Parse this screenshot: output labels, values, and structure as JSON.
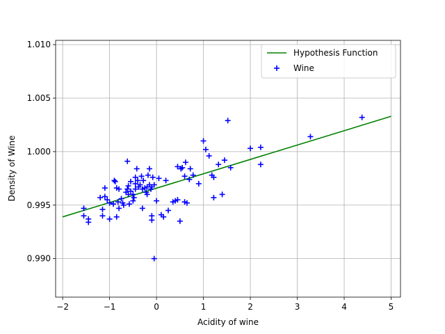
{
  "chart_data": {
    "type": "scatter",
    "xlabel": "Acidity of wine",
    "ylabel": "Density of Wine",
    "xlim": [
      -2.15,
      5.2
    ],
    "ylim": [
      0.9864,
      1.0104
    ],
    "xticks": [
      -2,
      -1,
      0,
      1,
      2,
      3,
      4,
      5
    ],
    "xtick_labels": [
      "−2",
      "−1",
      "0",
      "1",
      "2",
      "3",
      "4",
      "5"
    ],
    "yticks": [
      0.99,
      0.995,
      1.0,
      1.005,
      1.01
    ],
    "ytick_labels": [
      "0.990",
      "0.995",
      "1.000",
      "1.005",
      "1.010"
    ],
    "grid": true,
    "legend": {
      "position": "top-right"
    },
    "colors": {
      "line": "#008000",
      "points": "#0000ff"
    },
    "line": {
      "name": "Hypothesis Function",
      "x": [
        -2,
        5
      ],
      "y": [
        0.9939,
        1.0033
      ]
    },
    "scatter": {
      "name": "Wine",
      "marker": "+",
      "points": [
        [
          -1.55,
          0.9947
        ],
        [
          -1.55,
          0.994
        ],
        [
          -1.45,
          0.9937
        ],
        [
          -1.45,
          0.9934
        ],
        [
          -1.2,
          0.9957
        ],
        [
          -1.15,
          0.9946
        ],
        [
          -1.15,
          0.994
        ],
        [
          -1.1,
          0.9966
        ],
        [
          -1.1,
          0.9958
        ],
        [
          -1.05,
          0.9955
        ],
        [
          -1.0,
          0.9952
        ],
        [
          -1.0,
          0.9937
        ],
        [
          -0.92,
          0.9951
        ],
        [
          -0.9,
          0.9973
        ],
        [
          -0.88,
          0.9972
        ],
        [
          -0.85,
          0.9939
        ],
        [
          -0.85,
          0.9966
        ],
        [
          -0.82,
          0.9953
        ],
        [
          -0.8,
          0.9947
        ],
        [
          -0.8,
          0.9965
        ],
        [
          -0.75,
          0.9956
        ],
        [
          -0.72,
          0.9952
        ],
        [
          -0.7,
          0.995
        ],
        [
          -0.65,
          0.9962
        ],
        [
          -0.62,
          0.9991
        ],
        [
          -0.62,
          0.9965
        ],
        [
          -0.6,
          0.9968
        ],
        [
          -0.6,
          0.996
        ],
        [
          -0.58,
          0.9951
        ],
        [
          -0.55,
          0.9972
        ],
        [
          -0.55,
          0.9963
        ],
        [
          -0.5,
          0.996
        ],
        [
          -0.5,
          0.9954
        ],
        [
          -0.48,
          0.9957
        ],
        [
          -0.45,
          0.997
        ],
        [
          -0.45,
          0.9965
        ],
        [
          -0.45,
          0.9976
        ],
        [
          -0.42,
          0.9984
        ],
        [
          -0.4,
          0.9973
        ],
        [
          -0.38,
          0.9967
        ],
        [
          -0.35,
          0.9969
        ],
        [
          -0.32,
          0.9977
        ],
        [
          -0.3,
          0.9965
        ],
        [
          -0.3,
          0.9947
        ],
        [
          -0.28,
          0.9973
        ],
        [
          -0.25,
          0.9966
        ],
        [
          -0.22,
          0.9962
        ],
        [
          -0.2,
          0.9967
        ],
        [
          -0.2,
          0.996
        ],
        [
          -0.18,
          0.9978
        ],
        [
          -0.15,
          0.9984
        ],
        [
          -0.15,
          0.9969
        ],
        [
          -0.12,
          0.9965
        ],
        [
          -0.1,
          0.9967
        ],
        [
          -0.1,
          0.994
        ],
        [
          -0.1,
          0.9936
        ],
        [
          -0.08,
          0.9976
        ],
        [
          -0.05,
          0.9969
        ],
        [
          -0.05,
          0.99
        ],
        [
          0.0,
          0.9954
        ],
        [
          0.05,
          0.9975
        ],
        [
          0.1,
          0.9941
        ],
        [
          0.15,
          0.9939
        ],
        [
          0.2,
          0.9973
        ],
        [
          0.25,
          0.9945
        ],
        [
          0.35,
          0.9953
        ],
        [
          0.4,
          0.9954
        ],
        [
          0.45,
          0.9955
        ],
        [
          0.45,
          0.9986
        ],
        [
          0.5,
          0.9935
        ],
        [
          0.52,
          0.9984
        ],
        [
          0.55,
          0.9985
        ],
        [
          0.6,
          0.9977
        ],
        [
          0.6,
          0.9953
        ],
        [
          0.62,
          0.999
        ],
        [
          0.65,
          0.9952
        ],
        [
          0.7,
          0.9974
        ],
        [
          0.72,
          0.9984
        ],
        [
          0.78,
          0.9978
        ],
        [
          0.9,
          0.997
        ],
        [
          1.0,
          1.001
        ],
        [
          1.05,
          1.0002
        ],
        [
          1.12,
          0.9996
        ],
        [
          1.18,
          0.9978
        ],
        [
          1.22,
          0.9976
        ],
        [
          1.22,
          0.9957
        ],
        [
          1.32,
          0.9988
        ],
        [
          1.4,
          0.996
        ],
        [
          1.45,
          0.9992
        ],
        [
          1.52,
          1.0029
        ],
        [
          1.58,
          0.9985
        ],
        [
          2.0,
          1.0003
        ],
        [
          2.22,
          1.0004
        ],
        [
          2.22,
          0.9988
        ],
        [
          3.28,
          1.0014
        ],
        [
          4.38,
          1.0032
        ]
      ]
    }
  }
}
